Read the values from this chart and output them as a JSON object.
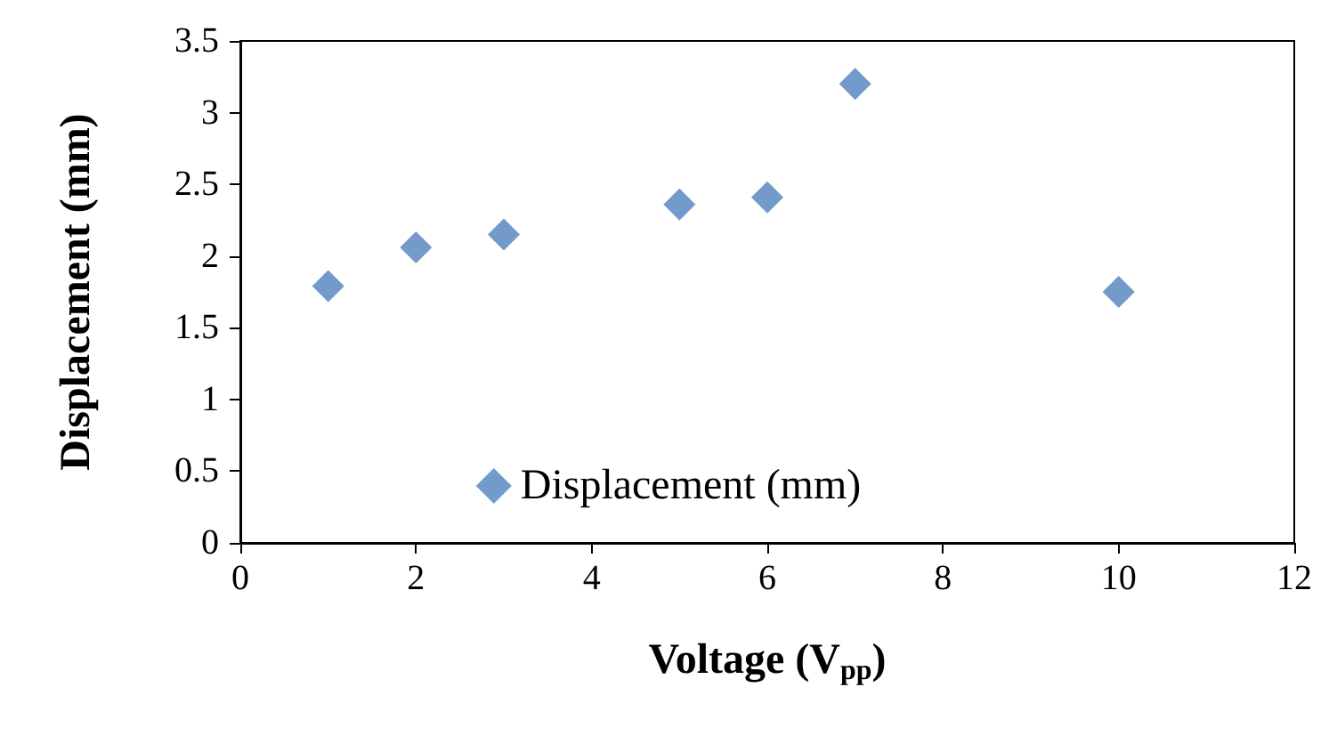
{
  "chart_data": {
    "type": "scatter",
    "xlabel": "Voltage (V$_{pp}$)",
    "ylabel": "Displacement (mm)",
    "x": [
      1,
      2,
      3,
      5,
      6,
      7,
      10
    ],
    "series": [
      {
        "name": "Displacement (mm)",
        "color": "#4f81bd",
        "values": [
          1.79,
          2.06,
          2.15,
          2.36,
          2.41,
          3.2,
          1.75
        ]
      }
    ],
    "xlim": [
      0,
      12
    ],
    "xticks": [
      0,
      2,
      4,
      6,
      8,
      10,
      12
    ],
    "ylim": [
      0,
      3.5
    ],
    "yticks": [
      0,
      0.5,
      1,
      1.5,
      2,
      2.5,
      3,
      3.5
    ],
    "grid": false,
    "legend": "bottom",
    "marker": "diamond"
  }
}
